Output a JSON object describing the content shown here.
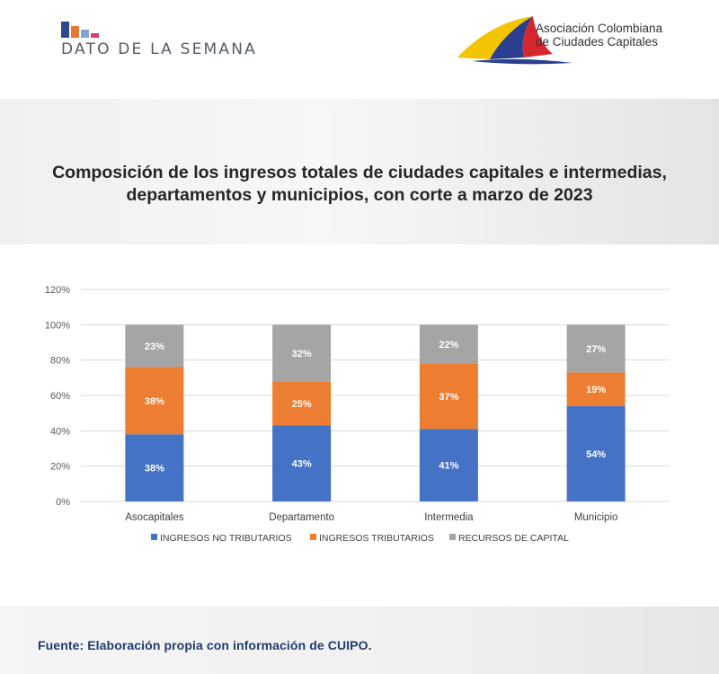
{
  "header": {
    "section_title": "DATO DE LA SEMANA",
    "org_name_line1": "Asociación Colombiana",
    "org_name_line2": "de Ciudades Capitales",
    "brand_colors": [
      "#2f4a8a",
      "#e57a2e",
      "#7da4d8",
      "#d63b7a"
    ]
  },
  "chart_title": "Composición de los ingresos totales de ciudades capitales e intermedias, departamentos y municipios, con corte a marzo de 2023",
  "chart_data": {
    "type": "bar",
    "stacked": true,
    "categories": [
      "Asocapitales",
      "Departamento",
      "Intermedia",
      "Municipio"
    ],
    "series": [
      {
        "name": "INGRESOS NO TRIBUTARIOS",
        "values": [
          38,
          43,
          41,
          54
        ],
        "labels": [
          "38%",
          "43%",
          "41%",
          "54%"
        ],
        "color": "#4472c4"
      },
      {
        "name": "INGRESOS TRIBUTARIOS",
        "values": [
          38,
          25,
          37,
          19
        ],
        "labels": [
          "38%",
          "25%",
          "37%",
          "19%"
        ],
        "color": "#ed7d31"
      },
      {
        "name": "RECURSOS DE CAPITAL",
        "values": [
          23,
          32,
          22,
          27
        ],
        "labels": [
          "23%",
          "32%",
          "22%",
          "27%"
        ],
        "color": "#a5a5a5"
      }
    ],
    "yticks": [
      "0%",
      "20%",
      "40%",
      "60%",
      "80%",
      "100%",
      "120%"
    ],
    "ylim": [
      0,
      120
    ],
    "grid": true,
    "legend": "bottom",
    "bar_tops": [
      100,
      100,
      100,
      100
    ]
  },
  "footer": {
    "source": "Fuente: Elaboración propia con información de CUIPO."
  }
}
